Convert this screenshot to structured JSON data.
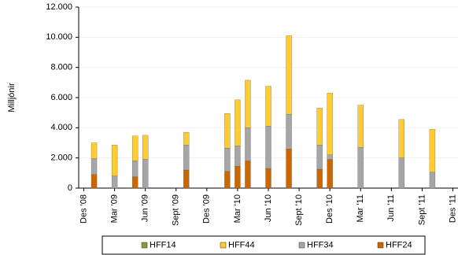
{
  "chart_data": {
    "type": "bar",
    "stacked": true,
    "y_label": "Milljónir",
    "categories": [
      "Des '08",
      null,
      null,
      "Mar '09",
      null,
      null,
      "Jun '09",
      null,
      null,
      "Sept '09",
      null,
      null,
      "Des '09",
      null,
      null,
      "Mar '10",
      null,
      null,
      "Jun '10",
      null,
      null,
      "Sept '10",
      null,
      null,
      "Des '10",
      null,
      null,
      "Mar '11",
      null,
      null,
      "Jun '11",
      null,
      null,
      "Sept '11",
      null,
      null,
      "Des '11"
    ],
    "series": [
      {
        "name": "HFF14",
        "color": "#8a9a3a",
        "values": [
          null,
          null,
          null,
          null,
          null,
          null,
          null,
          null,
          null,
          null,
          null,
          null,
          null,
          null,
          null,
          null,
          null,
          null,
          null,
          null,
          null,
          null,
          null,
          null,
          null,
          null,
          null,
          null,
          null,
          null,
          null,
          null,
          null,
          null,
          null,
          null,
          null
        ]
      },
      {
        "name": "HFF44",
        "color": "#ffcc33",
        "values": [
          null,
          1050,
          null,
          2050,
          null,
          1650,
          1600,
          null,
          null,
          null,
          850,
          null,
          null,
          null,
          2300,
          3050,
          3150,
          null,
          2650,
          null,
          5200,
          null,
          null,
          2450,
          4100,
          null,
          null,
          2800,
          null,
          null,
          null,
          2550,
          null,
          null,
          2850,
          null,
          null
        ]
      },
      {
        "name": "HFF34",
        "color": "#a6a6a6",
        "values": [
          null,
          1050,
          null,
          800,
          null,
          1050,
          1900,
          null,
          null,
          null,
          1650,
          null,
          null,
          null,
          1550,
          1350,
          2200,
          null,
          2800,
          null,
          2300,
          null,
          null,
          1600,
          300,
          null,
          null,
          2700,
          null,
          null,
          null,
          2000,
          null,
          null,
          1050,
          null,
          null
        ]
      },
      {
        "name": "HFF24",
        "color": "#cc6600",
        "values": [
          null,
          900,
          null,
          null,
          null,
          750,
          null,
          null,
          null,
          null,
          1200,
          null,
          null,
          null,
          1100,
          1450,
          1800,
          null,
          1300,
          null,
          2600,
          null,
          null,
          1250,
          1900,
          null,
          null,
          null,
          null,
          null,
          null,
          null,
          null,
          null,
          null,
          null,
          null
        ]
      }
    ],
    "ylim": [
      0,
      12000
    ],
    "yticks": [
      0,
      {
        "value": 2000,
        "label": "2.000"
      },
      {
        "value": 4000,
        "label": "4.000"
      },
      {
        "value": 6000,
        "label": "6.000"
      },
      {
        "value": 8000,
        "label": "8.000"
      },
      {
        "value": 10000,
        "label": "10.000"
      },
      {
        "value": 12000,
        "label": "12.000"
      }
    ],
    "grid": true,
    "legend": "bottom"
  }
}
